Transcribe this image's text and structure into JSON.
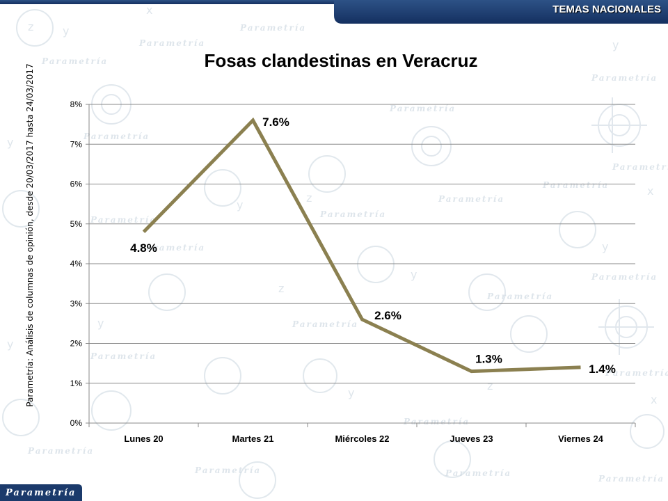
{
  "header": {
    "section_label": "TEMAS NACIONALES"
  },
  "side_note": "Parametría: Análisis de columnas de opinión, desde 20/03/2017 hasta 24/03/2017",
  "footer": {
    "logo_text": "Parametría"
  },
  "colors": {
    "brand_navy": "#1b3a6b",
    "line": "#8b8050",
    "grid": "#888888"
  },
  "chart_data": {
    "type": "line",
    "title": "Fosas clandestinas en Veracruz",
    "xlabel": "",
    "ylabel": "",
    "categories": [
      "Lunes 20",
      "Martes 21",
      "Miércoles 22",
      "Jueves 23",
      "Viernes 24"
    ],
    "series": [
      {
        "values": [
          4.8,
          7.6,
          2.6,
          1.3,
          1.4
        ],
        "labels": [
          "4.8%",
          "7.6%",
          "2.6%",
          "1.3%",
          "1.4%"
        ]
      }
    ],
    "ylim": [
      0,
      8
    ],
    "yticks": [
      "0%",
      "1%",
      "2%",
      "3%",
      "4%",
      "5%",
      "6%",
      "7%",
      "8%"
    ],
    "grid": true,
    "legend": "none"
  }
}
